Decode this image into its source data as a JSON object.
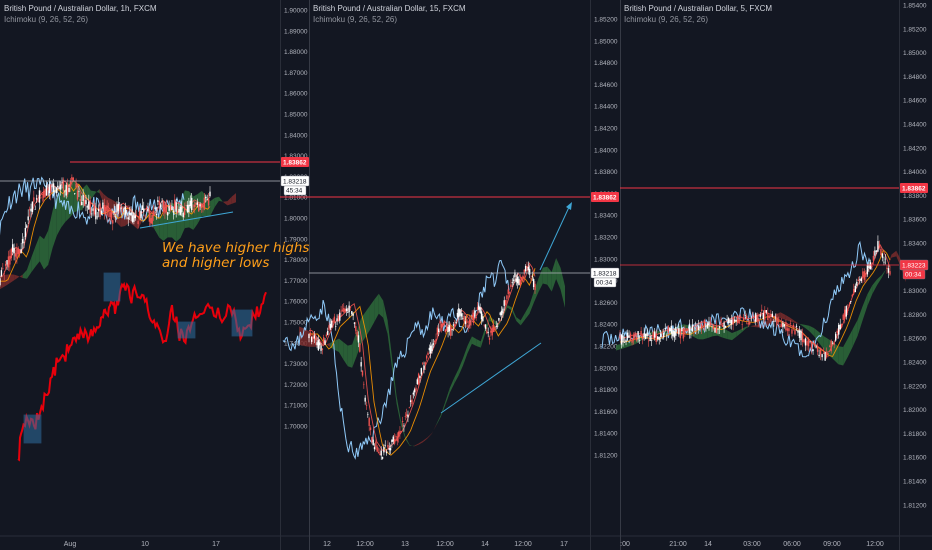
{
  "panels": [
    {
      "title": "British Pound / Australian Dollar, 1h, FXCM",
      "indicator": "Ichimoku (9, 26, 52, 26)",
      "price_scale": [
        "1.90000",
        "1.89000",
        "1.88000",
        "1.87000",
        "1.86000",
        "1.85000",
        "1.84000",
        "1.83000",
        "1.82000",
        "1.81000",
        "1.80000",
        "1.79000",
        "1.78000",
        "1.77000",
        "1.76000",
        "1.75000",
        "1.74000",
        "1.73000",
        "1.72000",
        "1.71000",
        "1.70000"
      ],
      "time_scale": [
        "Aug",
        "10",
        "17"
      ],
      "level_label": "1.83862",
      "last_price_label": "1.83218",
      "countdown_label": "45:34"
    },
    {
      "title": "British Pound / Australian Dollar, 15, FXCM",
      "indicator": "Ichimoku (9, 26, 52, 26)",
      "price_scale": [
        "1.85200",
        "1.85000",
        "1.84800",
        "1.84600",
        "1.84400",
        "1.84200",
        "1.84000",
        "1.83800",
        "1.83600",
        "1.83400",
        "1.83200",
        "1.83000",
        "1.82800",
        "1.82600",
        "1.82400",
        "1.82200",
        "1.82000",
        "1.81800",
        "1.81600",
        "1.81400",
        "1.81200"
      ],
      "time_scale": [
        "12",
        "12:00",
        "13",
        "12:00",
        "14",
        "12:00",
        "17"
      ],
      "level_label": "1.83862",
      "last_price_label": "1.83218",
      "countdown_label": "00:34"
    },
    {
      "title": "British Pound / Australian Dollar, 5, FXCM",
      "indicator": "Ichimoku (9, 26, 52, 26)",
      "price_scale": [
        "1.85400",
        "1.85200",
        "1.85000",
        "1.84800",
        "1.84600",
        "1.84400",
        "1.84200",
        "1.84000",
        "1.83800",
        "1.83600",
        "1.83400",
        "1.83200",
        "1.83000",
        "1.82800",
        "1.82600",
        "1.82400",
        "1.82200",
        "1.82000",
        "1.81800",
        "1.81600",
        "1.81400",
        "1.81200"
      ],
      "time_scale": [
        ":00",
        "21:00",
        "14",
        "03:00",
        "06:00",
        "09:00",
        "12:00"
      ],
      "level_label": "1.83862",
      "last_price_label": "1.83223",
      "countdown_label": "00:34"
    }
  ],
  "annotation": {
    "line1": "We have higher highs",
    "line2": "and higher lows"
  },
  "colors": {
    "background": "#131722",
    "level_line": "#f23645",
    "price_line": "#b2b5be",
    "candle_up": "#ffffff",
    "candle_down": "#ef5350",
    "tenkan": "#ef5350",
    "kijun": "#ff9800",
    "chikou": "#90caf9",
    "cloud_bull": "#2e6b3a",
    "cloud_bear": "#7a2c2c",
    "trendline": "#3fa7d6",
    "highlight_box": "#2f6fa0",
    "annotation": "#ff9f1a",
    "overlay_trace": "#e8000b"
  },
  "chart_data": [
    {
      "type": "line",
      "title": "British Pound / Australian Dollar, 1h, FXCM",
      "indicator": "Ichimoku (9, 26, 52, 26)",
      "ylim": [
        1.7,
        1.905
      ],
      "x_ticks": [
        "Aug",
        "10",
        "17"
      ],
      "resistance_level": 1.83862,
      "last_price": 1.83218,
      "close_path": [
        {
          "x": 0,
          "y": 1.8
        },
        {
          "x": 8,
          "y": 1.807
        },
        {
          "x": 14,
          "y": 1.812
        },
        {
          "x": 20,
          "y": 1.809
        },
        {
          "x": 26,
          "y": 1.82
        },
        {
          "x": 32,
          "y": 1.828
        },
        {
          "x": 38,
          "y": 1.832
        },
        {
          "x": 44,
          "y": 1.834
        },
        {
          "x": 50,
          "y": 1.836
        },
        {
          "x": 56,
          "y": 1.834
        },
        {
          "x": 62,
          "y": 1.838
        },
        {
          "x": 66,
          "y": 1.835
        },
        {
          "x": 72,
          "y": 1.838
        },
        {
          "x": 80,
          "y": 1.832
        },
        {
          "x": 88,
          "y": 1.829
        },
        {
          "x": 96,
          "y": 1.826
        },
        {
          "x": 104,
          "y": 1.828
        },
        {
          "x": 112,
          "y": 1.824
        },
        {
          "x": 120,
          "y": 1.829
        },
        {
          "x": 128,
          "y": 1.826
        },
        {
          "x": 136,
          "y": 1.823
        },
        {
          "x": 144,
          "y": 1.827
        },
        {
          "x": 152,
          "y": 1.824
        },
        {
          "x": 160,
          "y": 1.83
        },
        {
          "x": 168,
          "y": 1.826
        },
        {
          "x": 176,
          "y": 1.829
        },
        {
          "x": 184,
          "y": 1.826
        },
        {
          "x": 192,
          "y": 1.83
        },
        {
          "x": 200,
          "y": 1.828
        },
        {
          "x": 210,
          "y": 1.832
        }
      ],
      "overlay_trace": [
        {
          "x": 18,
          "y": 1.73
        },
        {
          "x": 22,
          "y": 1.741
        },
        {
          "x": 28,
          "y": 1.745
        },
        {
          "x": 34,
          "y": 1.743
        },
        {
          "x": 40,
          "y": 1.748
        },
        {
          "x": 46,
          "y": 1.755
        },
        {
          "x": 52,
          "y": 1.762
        },
        {
          "x": 58,
          "y": 1.768
        },
        {
          "x": 64,
          "y": 1.77
        },
        {
          "x": 70,
          "y": 1.774
        },
        {
          "x": 76,
          "y": 1.776
        },
        {
          "x": 82,
          "y": 1.779
        },
        {
          "x": 88,
          "y": 1.776
        },
        {
          "x": 94,
          "y": 1.781
        },
        {
          "x": 100,
          "y": 1.782
        },
        {
          "x": 104,
          "y": 1.788
        },
        {
          "x": 108,
          "y": 1.786
        },
        {
          "x": 112,
          "y": 1.791
        },
        {
          "x": 116,
          "y": 1.789
        },
        {
          "x": 120,
          "y": 1.795
        },
        {
          "x": 124,
          "y": 1.798
        },
        {
          "x": 130,
          "y": 1.793
        },
        {
          "x": 136,
          "y": 1.795
        },
        {
          "x": 142,
          "y": 1.794
        },
        {
          "x": 148,
          "y": 1.788
        },
        {
          "x": 154,
          "y": 1.784
        },
        {
          "x": 160,
          "y": 1.78
        },
        {
          "x": 166,
          "y": 1.776
        },
        {
          "x": 172,
          "y": 1.79
        },
        {
          "x": 178,
          "y": 1.78
        },
        {
          "x": 184,
          "y": 1.776
        },
        {
          "x": 190,
          "y": 1.78
        },
        {
          "x": 196,
          "y": 1.785
        },
        {
          "x": 204,
          "y": 1.787
        },
        {
          "x": 212,
          "y": 1.789
        },
        {
          "x": 220,
          "y": 1.785
        },
        {
          "x": 228,
          "y": 1.79
        },
        {
          "x": 236,
          "y": 1.784
        },
        {
          "x": 242,
          "y": 1.778
        },
        {
          "x": 248,
          "y": 1.782
        },
        {
          "x": 254,
          "y": 1.786
        },
        {
          "x": 260,
          "y": 1.787
        },
        {
          "x": 266,
          "y": 1.795
        }
      ]
    },
    {
      "type": "line",
      "title": "British Pound / Australian Dollar, 15, FXCM",
      "indicator": "Ichimoku (9, 26, 52, 26)",
      "ylim": [
        1.8112,
        1.8544
      ],
      "x_ticks": [
        "12",
        "12:00",
        "13",
        "12:00",
        "14",
        "12:00",
        "17"
      ],
      "resistance_level": 1.83862,
      "last_price": 1.83218,
      "close_path": [
        {
          "x": 0,
          "y": 1.8282
        },
        {
          "x": 12,
          "y": 1.8268
        },
        {
          "x": 22,
          "y": 1.8288
        },
        {
          "x": 32,
          "y": 1.8296
        },
        {
          "x": 42,
          "y": 1.8305
        },
        {
          "x": 50,
          "y": 1.8275
        },
        {
          "x": 56,
          "y": 1.8225
        },
        {
          "x": 64,
          "y": 1.819
        },
        {
          "x": 72,
          "y": 1.818
        },
        {
          "x": 82,
          "y": 1.8188
        },
        {
          "x": 92,
          "y": 1.82
        },
        {
          "x": 102,
          "y": 1.8222
        },
        {
          "x": 112,
          "y": 1.825
        },
        {
          "x": 122,
          "y": 1.8268
        },
        {
          "x": 132,
          "y": 1.829
        },
        {
          "x": 142,
          "y": 1.8282
        },
        {
          "x": 150,
          "y": 1.83
        },
        {
          "x": 160,
          "y": 1.8288
        },
        {
          "x": 170,
          "y": 1.8302
        },
        {
          "x": 180,
          "y": 1.828
        },
        {
          "x": 190,
          "y": 1.8292
        },
        {
          "x": 198,
          "y": 1.8312
        },
        {
          "x": 206,
          "y": 1.833
        },
        {
          "x": 212,
          "y": 1.8322
        },
        {
          "x": 218,
          "y": 1.834
        },
        {
          "x": 222,
          "y": 1.833
        },
        {
          "x": 226,
          "y": 1.8318
        }
      ]
    },
    {
      "type": "line",
      "title": "British Pound / Australian Dollar, 5, FXCM",
      "indicator": "Ichimoku (9, 26, 52, 26)",
      "ylim": [
        1.8106,
        1.8546
      ],
      "x_ticks": [
        ":00",
        "21:00",
        "14",
        "03:00",
        "06:00",
        "09:00",
        "12:00"
      ],
      "resistance_level": 1.83862,
      "last_price": 1.83223,
      "close_path": [
        {
          "x": 0,
          "y": 1.8268
        },
        {
          "x": 16,
          "y": 1.8272
        },
        {
          "x": 32,
          "y": 1.827
        },
        {
          "x": 48,
          "y": 1.8276
        },
        {
          "x": 64,
          "y": 1.8274
        },
        {
          "x": 80,
          "y": 1.8282
        },
        {
          "x": 96,
          "y": 1.8278
        },
        {
          "x": 112,
          "y": 1.8286
        },
        {
          "x": 128,
          "y": 1.8284
        },
        {
          "x": 144,
          "y": 1.829
        },
        {
          "x": 160,
          "y": 1.8282
        },
        {
          "x": 176,
          "y": 1.8276
        },
        {
          "x": 188,
          "y": 1.8266
        },
        {
          "x": 198,
          "y": 1.826
        },
        {
          "x": 206,
          "y": 1.8255
        },
        {
          "x": 214,
          "y": 1.8268
        },
        {
          "x": 222,
          "y": 1.8282
        },
        {
          "x": 230,
          "y": 1.8302
        },
        {
          "x": 238,
          "y": 1.8316
        },
        {
          "x": 246,
          "y": 1.8324
        },
        {
          "x": 252,
          "y": 1.8332
        },
        {
          "x": 258,
          "y": 1.8346
        },
        {
          "x": 264,
          "y": 1.8336
        },
        {
          "x": 270,
          "y": 1.8322
        }
      ]
    }
  ]
}
